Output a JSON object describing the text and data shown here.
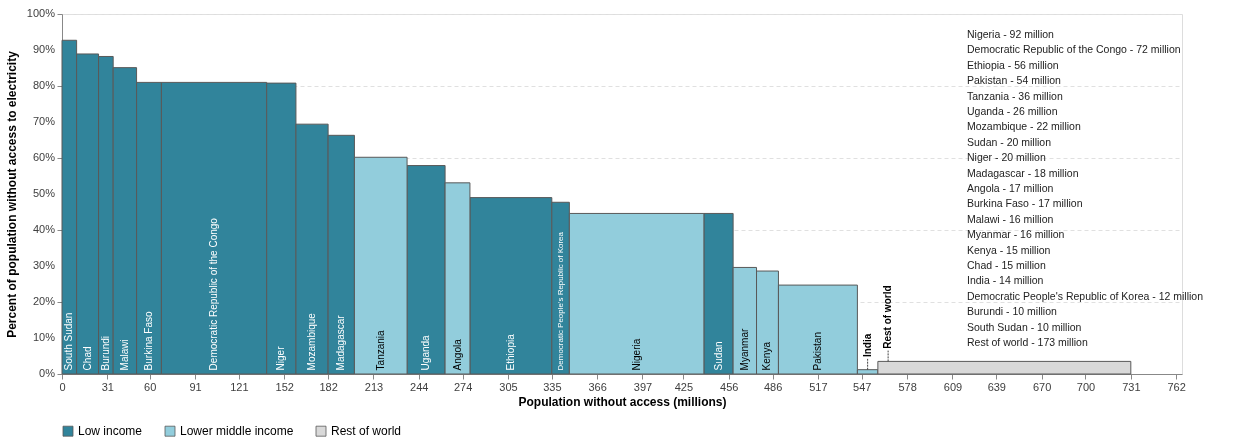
{
  "chart_data": {
    "type": "bar",
    "xlabel": "Population without access (millions)",
    "ylabel": "Percent of population without access to electricity",
    "x": [
      5,
      17.5,
      30,
      43,
      59.5,
      104,
      150,
      171,
      191,
      218,
      249,
      270.5,
      307,
      341,
      393,
      449,
      467,
      482.5,
      517,
      551,
      644.5
    ],
    "series": [
      {
        "name": "Low income",
        "color": "#31849b",
        "values": [
          92.7,
          88.9,
          88.2,
          85.1,
          81.0,
          81.0,
          80.8,
          69.4,
          66.3,
          null,
          57.9,
          null,
          49.0,
          47.7,
          null,
          44.6,
          null,
          null,
          null,
          null,
          null
        ]
      },
      {
        "name": "Lower middle income",
        "color": "#92cddc",
        "values": [
          null,
          null,
          null,
          null,
          null,
          null,
          null,
          null,
          null,
          60.2,
          null,
          53.1,
          null,
          null,
          44.6,
          null,
          29.6,
          28.6,
          24.7,
          1.2,
          null
        ]
      },
      {
        "name": "Rest of world",
        "color": "#d9d9d9",
        "values": [
          null,
          null,
          null,
          null,
          null,
          null,
          null,
          null,
          null,
          null,
          null,
          null,
          null,
          null,
          null,
          null,
          null,
          null,
          null,
          null,
          3.5
        ]
      }
    ],
    "xlim": [
      0,
      766
    ],
    "xticks": [
      0,
      31,
      60,
      91,
      121,
      152,
      182,
      213,
      244,
      274,
      305,
      335,
      366,
      397,
      425,
      456,
      486,
      517,
      547,
      578,
      609,
      639,
      670,
      700,
      731,
      762
    ],
    "ylim": [
      0,
      100
    ],
    "yticks": [
      {
        "value": 0,
        "label": "0%"
      },
      {
        "value": 10,
        "label": "10%"
      },
      {
        "value": 20,
        "label": "20%"
      },
      {
        "value": 30,
        "label": "30%"
      },
      {
        "value": 40,
        "label": "40%"
      },
      {
        "value": 50,
        "label": "50%"
      },
      {
        "value": 60,
        "label": "60%"
      },
      {
        "value": 70,
        "label": "70%"
      },
      {
        "value": 80,
        "label": "80%"
      },
      {
        "value": 90,
        "label": "90%"
      },
      {
        "value": 100,
        "label": "100%"
      }
    ],
    "grid": "y",
    "legend": "bottom",
    "annotations": [
      {
        "text": "South Sudan",
        "x": 5,
        "y": 1
      },
      {
        "text": "Chad",
        "x": 17.5,
        "y": 1
      },
      {
        "text": "Burundi",
        "x": 30,
        "y": 1
      },
      {
        "text": "Malawi",
        "x": 43,
        "y": 1
      },
      {
        "text": "Burkina Faso",
        "x": 59.5,
        "y": 1
      },
      {
        "text": "Democratic Republic of the Congo",
        "x": 104,
        "y": 1
      },
      {
        "text": "Niger",
        "x": 150,
        "y": 1
      },
      {
        "text": "Mozambique",
        "x": 171,
        "y": 1
      },
      {
        "text": "Madagascar",
        "x": 191,
        "y": 1
      },
      {
        "text": "Tanzania",
        "x": 218,
        "y": 1
      },
      {
        "text": "Uganda",
        "x": 249,
        "y": 1
      },
      {
        "text": "Angola",
        "x": 270.5,
        "y": 1
      },
      {
        "text": "Ethiopia",
        "x": 307,
        "y": 1
      },
      {
        "text": "Democratic People's Republic of Korea",
        "x": 341,
        "y": 1
      },
      {
        "text": "Nigeria",
        "x": 393,
        "y": 1
      },
      {
        "text": "Sudan",
        "x": 449,
        "y": 1
      },
      {
        "text": "Myanmar",
        "x": 467,
        "y": 1
      },
      {
        "text": "Kenya",
        "x": 482.5,
        "y": 1
      },
      {
        "text": "Pakistan",
        "x": 517,
        "y": 1
      },
      {
        "text": "India",
        "x": 551,
        "y": 1.2
      },
      {
        "text": "Rest of world",
        "x": 565,
        "y": 3.5
      },
      "Nigeria - 92 million",
      "Democratic Republic of the Congo - 72 million",
      "Ethiopia - 56 million",
      "Pakistan - 54 million",
      "Tanzania - 36 million",
      "Uganda - 26 million",
      "Mozambique - 22 million",
      "Sudan - 20 million",
      "Niger - 20 million",
      "Madagascar - 18 million",
      "Angola - 17 million",
      "Burkina Faso - 17 million",
      "Malawi - 16 million",
      "Myanmar - 16 million",
      "Kenya - 15 million",
      "Chad - 15 million",
      "India - 14 million",
      "Democratic People's Republic of Korea - 12 million",
      "Burundi - 10 million",
      "South Sudan - 10 million",
      "Rest of world - 173 million"
    ]
  }
}
